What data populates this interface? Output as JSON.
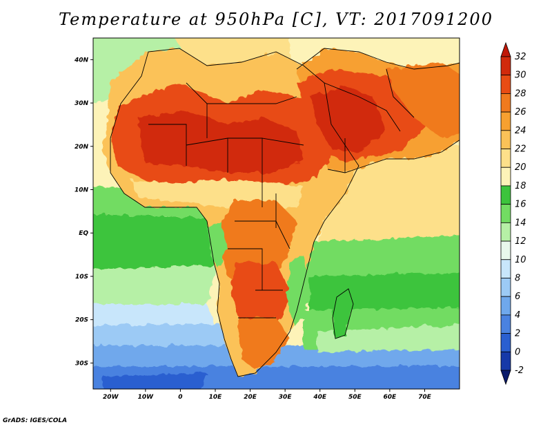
{
  "title": "Temperature at 950hPa [C], VT: 2017091200",
  "footer": "GrADS: IGES/COLA",
  "axes": {
    "lon_range": [
      -25,
      80
    ],
    "lat_range": [
      -36,
      45
    ],
    "lon_ticks": [
      {
        "value": -20,
        "label": "20W"
      },
      {
        "value": -10,
        "label": "10W"
      },
      {
        "value": 0,
        "label": "0"
      },
      {
        "value": 10,
        "label": "10E"
      },
      {
        "value": 20,
        "label": "20E"
      },
      {
        "value": 30,
        "label": "30E"
      },
      {
        "value": 40,
        "label": "40E"
      },
      {
        "value": 50,
        "label": "50E"
      },
      {
        "value": 60,
        "label": "60E"
      },
      {
        "value": 70,
        "label": "70E"
      }
    ],
    "lat_ticks": [
      {
        "value": 40,
        "label": "40N"
      },
      {
        "value": 30,
        "label": "30N"
      },
      {
        "value": 20,
        "label": "20N"
      },
      {
        "value": 10,
        "label": "10N"
      },
      {
        "value": 0,
        "label": "EQ"
      },
      {
        "value": -10,
        "label": "10S"
      },
      {
        "value": -20,
        "label": "20S"
      },
      {
        "value": -30,
        "label": "30S"
      }
    ]
  },
  "colorbar": {
    "levels": [
      "-2",
      "0",
      "2",
      "4",
      "6",
      "8",
      "10",
      "12",
      "14",
      "16",
      "18",
      "20",
      "22",
      "24",
      "26",
      "28",
      "30",
      "32"
    ],
    "colors": [
      "#0a1a6b",
      "#1639a8",
      "#2a5fd0",
      "#4a82e0",
      "#6fa8ec",
      "#9ccaf5",
      "#c8e6fb",
      "#e8f8ec",
      "#b6f0a6",
      "#72dc62",
      "#3cc43c",
      "#fdf3b8",
      "#fde08a",
      "#fbc258",
      "#f7a030",
      "#f07a1e",
      "#e84c14",
      "#d12a0c",
      "#c01808"
    ]
  },
  "map_regions": [
    {
      "name": "north-african-desert-heat",
      "temp": "32"
    },
    {
      "name": "arabian-heat",
      "temp": "32"
    },
    {
      "name": "southern-ocean-cold",
      "temp": "0"
    }
  ]
}
